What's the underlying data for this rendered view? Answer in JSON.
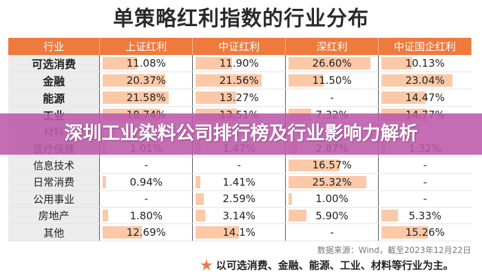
{
  "title": "单策略红利指数的行业分布",
  "table": {
    "headers": [
      "行业",
      "上证红利",
      "中证红利",
      "深红利",
      "中证国企红利"
    ],
    "rows": [
      {
        "industry": "可选消费",
        "bold": true,
        "values": [
          "11.08%",
          "11.90%",
          "26.60%",
          "10.13%"
        ],
        "num": [
          11.08,
          11.9,
          26.6,
          10.13
        ]
      },
      {
        "industry": "金融",
        "bold": true,
        "values": [
          "20.37%",
          "21.56%",
          "11.50%",
          "23.04%"
        ],
        "num": [
          20.37,
          21.56,
          11.5,
          23.04
        ]
      },
      {
        "industry": "能源",
        "bold": true,
        "values": [
          "21.58%",
          "13.27%",
          "-",
          "14.47%"
        ],
        "num": [
          21.58,
          13.27,
          0,
          14.47
        ]
      },
      {
        "industry": "工业",
        "bold": true,
        "values": [
          "18.74%",
          "13.51%",
          "7.32%",
          "14.77%"
        ],
        "num": [
          18.74,
          13.51,
          7.32,
          14.77
        ]
      },
      {
        "industry": "材料",
        "bold": false,
        "values": [
          "",
          "",
          "",
          ""
        ],
        "num": [
          0,
          0,
          0,
          0
        ]
      },
      {
        "industry": "医疗保健",
        "bold": false,
        "values": [
          "1.01%",
          "1.47%",
          "2.87%",
          "1.32%"
        ],
        "num": [
          1.01,
          1.47,
          2.87,
          1.32
        ]
      },
      {
        "industry": "信息技术",
        "bold": false,
        "values": [
          "-",
          "-",
          "16.57%",
          "-"
        ],
        "num": [
          0,
          0,
          16.57,
          0
        ]
      },
      {
        "industry": "日常消费",
        "bold": false,
        "values": [
          "0.94%",
          "1.41%",
          "25.32%",
          "-"
        ],
        "num": [
          0.94,
          1.41,
          25.32,
          0
        ]
      },
      {
        "industry": "公用事业",
        "bold": false,
        "values": [
          "-",
          "2.59%",
          "1.00%",
          "-"
        ],
        "num": [
          0,
          2.59,
          1.0,
          0
        ]
      },
      {
        "industry": "房地产",
        "bold": false,
        "values": [
          "1.80%",
          "3.14%",
          "5.90%",
          "5.33%"
        ],
        "num": [
          1.8,
          3.14,
          5.9,
          5.33
        ]
      },
      {
        "industry": "其他",
        "bold": false,
        "values": [
          "12.69%",
          "14.1%",
          "-",
          "15.26%"
        ],
        "num": [
          12.69,
          14.1,
          0,
          15.26
        ]
      }
    ]
  },
  "banner": "深圳工业染料公司排行榜及行业影响力解析",
  "source": "数据来源：Wind，截至2023年12月22日",
  "note": "以可选消费、金融、能源、工业、材料等行业为主。",
  "colors": {
    "header": "#ee7a3e",
    "bar": "#fbc9a8",
    "banner": "#bc58aa"
  }
}
